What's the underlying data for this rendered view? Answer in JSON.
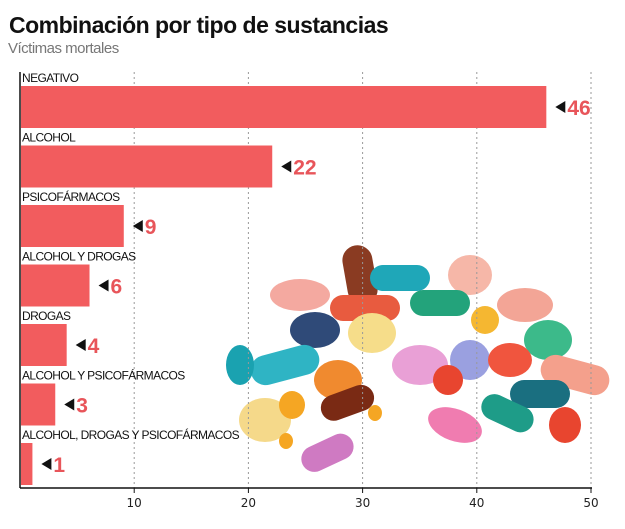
{
  "chart_data": {
    "type": "bar",
    "orientation": "horizontal",
    "title": "Combinación por tipo de sustancias",
    "subtitle": "Víctimas mortales",
    "categories": [
      "NEGATIVO",
      "ALCOHOL",
      "PSICOFÁRMACOS",
      "ALCOHOL Y DROGAS",
      "DROGAS",
      "ALCOHOL Y PSICOFÁRMACOS",
      "ALCOHOL, DROGAS Y PSICOFÁRMACOS"
    ],
    "values": [
      46,
      22,
      9,
      6,
      4,
      3,
      1
    ],
    "data_labels": [
      "46",
      "22",
      "9",
      "6",
      "4",
      "3",
      "1"
    ],
    "xlim": [
      0,
      50
    ],
    "xticks": [
      "10",
      "20",
      "30",
      "40",
      "50"
    ],
    "grid": "vertical dotted",
    "bar_color": "#f25c5e",
    "label_color": "#e8555a",
    "decoration": "pills-illustration"
  }
}
